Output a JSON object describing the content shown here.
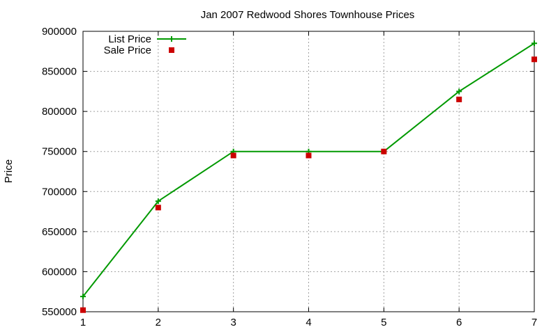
{
  "chart_data": {
    "type": "line",
    "title": "Jan 2007 Redwood Shores Townhouse Prices",
    "xlabel": "",
    "ylabel": "Price",
    "xlim": [
      1,
      7
    ],
    "ylim": [
      550000,
      900000
    ],
    "x_ticks": [
      "1",
      "2",
      "3",
      "4",
      "5",
      "6",
      "7"
    ],
    "y_ticks": [
      "550000",
      "600000",
      "650000",
      "700000",
      "750000",
      "800000",
      "850000",
      "900000"
    ],
    "grid": true,
    "legend_position": "top-left",
    "x": [
      1,
      2,
      3,
      4,
      5,
      6,
      7
    ],
    "series": [
      {
        "name": "List Price",
        "style": "line-with-plus-markers",
        "color": "#009900",
        "values": [
          569000,
          688000,
          750000,
          750000,
          750000,
          825000,
          885000
        ]
      },
      {
        "name": "Sale Price",
        "style": "square-markers",
        "color": "#cc0000",
        "values": [
          552000,
          680000,
          745000,
          745000,
          750000,
          815000,
          865000
        ]
      }
    ]
  }
}
